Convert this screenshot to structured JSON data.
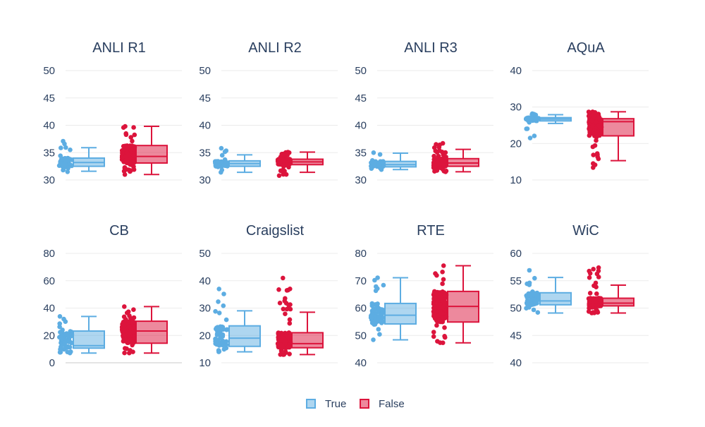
{
  "chart_data": {
    "type": "box",
    "legend": {
      "placement": "bottom-center",
      "entries": [
        {
          "name": "True",
          "color": "#5DADE2"
        },
        {
          "name": "False",
          "color": "#DC143C"
        }
      ]
    },
    "grid": true,
    "panels": [
      {
        "title": "ANLI R1",
        "ylim": [
          30,
          50
        ],
        "yticks": [
          "50",
          "45",
          "40",
          "35",
          "30"
        ],
        "series": [
          {
            "name": "True",
            "box": {
              "min": 31.6,
              "q1": 32.5,
              "median": 33.2,
              "q3": 34.0,
              "max": 35.9
            },
            "points_range": [
              31.5,
              37.1
            ],
            "points_count": 60
          },
          {
            "name": "False",
            "box": {
              "min": 31.0,
              "q1": 33.1,
              "median": 34.3,
              "q3": 36.3,
              "max": 39.8
            },
            "points_range": [
              31.0,
              39.8
            ],
            "points_count": 150
          }
        ]
      },
      {
        "title": "ANLI R2",
        "ylim": [
          30,
          50
        ],
        "yticks": [
          "50",
          "45",
          "40",
          "35",
          "30"
        ],
        "series": [
          {
            "name": "True",
            "box": {
              "min": 31.4,
              "q1": 32.5,
              "median": 33.0,
              "q3": 33.5,
              "max": 34.6
            },
            "points_range": [
              31.4,
              35.8
            ],
            "points_count": 60
          },
          {
            "name": "False",
            "box": {
              "min": 31.4,
              "q1": 32.8,
              "median": 33.3,
              "q3": 33.8,
              "max": 35.1
            },
            "points_range": [
              30.8,
              35.1
            ],
            "points_count": 150
          }
        ]
      },
      {
        "title": "ANLI R3",
        "ylim": [
          30,
          50
        ],
        "yticks": [
          "50",
          "45",
          "40",
          "35",
          "30"
        ],
        "series": [
          {
            "name": "True",
            "box": {
              "min": 31.9,
              "q1": 32.4,
              "median": 32.8,
              "q3": 33.4,
              "max": 34.9
            },
            "points_range": [
              31.9,
              35.0
            ],
            "points_count": 60
          },
          {
            "name": "False",
            "box": {
              "min": 31.5,
              "q1": 32.5,
              "median": 33.1,
              "q3": 33.9,
              "max": 35.6
            },
            "points_range": [
              31.5,
              36.7
            ],
            "points_count": 150
          }
        ]
      },
      {
        "title": "AQuA",
        "ylim": [
          10,
          40
        ],
        "yticks": [
          "40",
          "30",
          "20",
          "10"
        ],
        "series": [
          {
            "name": "True",
            "box": {
              "min": 25.5,
              "q1": 26.2,
              "median": 26.7,
              "q3": 27.1,
              "max": 27.9
            },
            "points_range": [
              21.5,
              28.2
            ],
            "points_count": 60
          },
          {
            "name": "False",
            "box": {
              "min": 15.3,
              "q1": 22.1,
              "median": 26.0,
              "q3": 26.8,
              "max": 28.7
            },
            "points_range": [
              13.4,
              28.7
            ],
            "points_count": 150
          }
        ]
      },
      {
        "title": "CB",
        "ylim": [
          0,
          80
        ],
        "yticks": [
          "80",
          "60",
          "40",
          "20",
          "0"
        ],
        "series": [
          {
            "name": "True",
            "box": {
              "min": 7.1,
              "q1": 10.7,
              "median": 12.5,
              "q3": 23.2,
              "max": 33.9
            },
            "points_range": [
              7.1,
              33.9
            ],
            "points_count": 60
          },
          {
            "name": "False",
            "box": {
              "min": 7.1,
              "q1": 14.3,
              "median": 23.2,
              "q3": 30.4,
              "max": 41.1
            },
            "points_range": [
              7.1,
              41.1
            ],
            "points_count": 150
          }
        ]
      },
      {
        "title": "Craigslist",
        "ylim": [
          10,
          50
        ],
        "yticks": [
          "50",
          "40",
          "30",
          "20",
          "10"
        ],
        "series": [
          {
            "name": "True",
            "box": {
              "min": 14.0,
              "q1": 16.0,
              "median": 19.0,
              "q3": 23.5,
              "max": 29.0
            },
            "points_range": [
              14.0,
              37.0
            ],
            "points_count": 60
          },
          {
            "name": "False",
            "box": {
              "min": 13.0,
              "q1": 15.5,
              "median": 17.0,
              "q3": 21.0,
              "max": 28.5
            },
            "points_range": [
              13.0,
              41.0
            ],
            "points_count": 150
          }
        ]
      },
      {
        "title": "RTE",
        "ylim": [
          40,
          80
        ],
        "yticks": [
          "80",
          "70",
          "60",
          "50",
          "40"
        ],
        "series": [
          {
            "name": "True",
            "box": {
              "min": 48.4,
              "q1": 54.2,
              "median": 57.4,
              "q3": 61.7,
              "max": 71.1
            },
            "points_range": [
              48.4,
              71.1
            ],
            "points_count": 60
          },
          {
            "name": "False",
            "box": {
              "min": 47.3,
              "q1": 54.9,
              "median": 60.6,
              "q3": 66.1,
              "max": 75.5
            },
            "points_range": [
              47.3,
              75.5
            ],
            "points_count": 150
          }
        ]
      },
      {
        "title": "WiC",
        "ylim": [
          40,
          60
        ],
        "yticks": [
          "60",
          "55",
          "50",
          "45",
          "40"
        ],
        "series": [
          {
            "name": "True",
            "box": {
              "min": 49.1,
              "q1": 50.6,
              "median": 51.3,
              "q3": 52.8,
              "max": 55.6
            },
            "points_range": [
              49.2,
              56.9
            ],
            "points_count": 60
          },
          {
            "name": "False",
            "box": {
              "min": 49.1,
              "q1": 50.4,
              "median": 50.9,
              "q3": 51.8,
              "max": 54.2
            },
            "points_range": [
              49.1,
              57.4
            ],
            "points_count": 150
          }
        ]
      }
    ]
  }
}
